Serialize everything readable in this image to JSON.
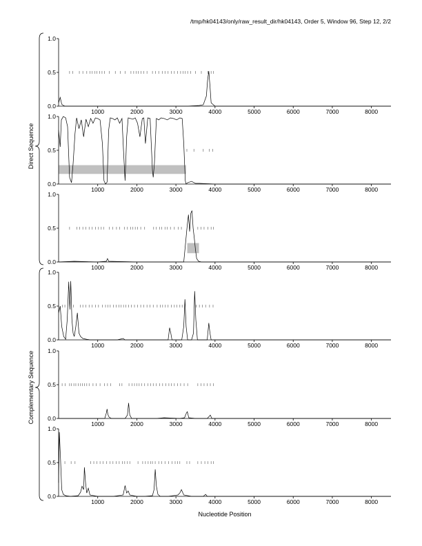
{
  "header": {
    "title": "/tmp/hk04143/only/raw_result_dir/hk04143, Order 5, Window 96, Step 12, 2/2"
  },
  "x_axis_label": "Nucleotide Position",
  "group_labels": [
    "Direct Sequence",
    "Complementary Sequence"
  ],
  "colors": {
    "line": "#000000",
    "highlight": "#c0c0c0",
    "axis": "#000000",
    "marker": "#555555"
  },
  "chart_data": [
    {
      "type": "line",
      "panel": 1,
      "group": "Direct Sequence",
      "xlim": [
        0,
        8500
      ],
      "ylim": [
        0,
        1
      ],
      "xticks": [
        1000,
        2000,
        3000,
        4000,
        5000,
        6000,
        7000,
        8000
      ],
      "yticks": [
        0.0,
        0.5,
        1.0
      ],
      "ytick_labels": [
        "0.0",
        "0.5",
        "1.0"
      ],
      "grid": false,
      "series": [
        {
          "x": [
            0,
            40,
            80,
            120,
            160,
            250,
            500,
            1000,
            1500,
            2000,
            2500,
            3000,
            3300,
            3600,
            3700,
            3780,
            3810,
            3840,
            3870,
            3900,
            4000,
            5000,
            8500
          ],
          "y": [
            0.05,
            0.13,
            0.03,
            0.01,
            0.0,
            0.0,
            0.0,
            0.0,
            0.0,
            0.0,
            0.0,
            0.0,
            0.0,
            0.01,
            0.02,
            0.15,
            0.38,
            0.52,
            0.3,
            0.05,
            0.0,
            0.0,
            0.0
          ]
        }
      ],
      "markers": {
        "y": 0.5,
        "x": [
          280,
          360,
          530,
          620,
          720,
          800,
          860,
          930,
          980,
          1050,
          1110,
          1170,
          1300,
          1450,
          1580,
          1700,
          1850,
          1920,
          1980,
          2040,
          2110,
          2180,
          2260,
          2400,
          2480,
          2560,
          2650,
          2720,
          2800,
          2880,
          2960,
          3040,
          3120,
          3180,
          3240,
          3300,
          3380,
          3500,
          3650,
          3820,
          3900,
          3960
        ]
      },
      "highlights": []
    },
    {
      "type": "line",
      "panel": 2,
      "group": "Direct Sequence",
      "xlim": [
        0,
        8500
      ],
      "ylim": [
        0,
        1
      ],
      "xticks": [
        1000,
        2000,
        3000,
        4000,
        5000,
        6000,
        7000,
        8000
      ],
      "yticks": [
        0.0,
        0.5,
        1.0
      ],
      "ytick_labels": [
        "0.0",
        "0.5",
        "1.0"
      ],
      "grid": false,
      "series": [
        {
          "x": [
            0,
            40,
            70,
            120,
            180,
            230,
            280,
            330,
            370,
            420,
            460,
            520,
            580,
            640,
            700,
            760,
            820,
            880,
            940,
            1000,
            1060,
            1120,
            1160,
            1200,
            1240,
            1280,
            1320,
            1380,
            1440,
            1500,
            1560,
            1620,
            1660,
            1700,
            1740,
            1780,
            1840,
            1900,
            1960,
            2020,
            2080,
            2140,
            2180,
            2220,
            2280,
            2340,
            2400,
            2420,
            2450,
            2500,
            2560,
            2620,
            2700,
            2780,
            2860,
            2940,
            3020,
            3100,
            3160,
            3200,
            3240,
            3260,
            3300,
            3400,
            3500,
            3600,
            4000,
            8500
          ],
          "y": [
            0.8,
            0.55,
            0.95,
            1.0,
            0.98,
            0.85,
            0.1,
            0.02,
            0.3,
            0.75,
            0.98,
            0.82,
            0.95,
            0.7,
            0.96,
            0.85,
            0.97,
            0.9,
            0.98,
            0.97,
            0.95,
            0.6,
            0.05,
            0.0,
            0.03,
            0.8,
            0.98,
            0.97,
            0.95,
            0.98,
            0.9,
            0.97,
            0.5,
            0.05,
            0.7,
            0.98,
            0.97,
            0.96,
            0.98,
            0.9,
            0.7,
            0.97,
            0.98,
            0.6,
            0.98,
            0.97,
            0.2,
            0.1,
            0.3,
            0.97,
            0.95,
            0.98,
            0.97,
            0.95,
            0.98,
            0.97,
            0.95,
            0.98,
            0.97,
            0.6,
            0.05,
            0.0,
            0.02,
            0.04,
            0.01,
            0.01,
            0.0,
            0.0
          ]
        }
      ],
      "markers": {
        "y": 0.5,
        "x": [
          3280,
          3460,
          3700,
          3850,
          3940
        ]
      },
      "highlights": [
        {
          "x0": 0,
          "x1": 3260,
          "y0": 0.15,
          "y1": 0.28
        }
      ]
    },
    {
      "type": "line",
      "panel": 3,
      "group": "Direct Sequence",
      "xlim": [
        0,
        8500
      ],
      "ylim": [
        0,
        1
      ],
      "xticks": [
        1000,
        2000,
        3000,
        4000,
        5000,
        6000,
        7000,
        8000
      ],
      "yticks": [
        0.0,
        0.5,
        1.0
      ],
      "ytick_labels": [
        "0.0",
        "0.5",
        "1.0"
      ],
      "grid": false,
      "series": [
        {
          "x": [
            0,
            400,
            1000,
            1220,
            1250,
            1280,
            2000,
            3200,
            3250,
            3290,
            3320,
            3350,
            3380,
            3410,
            3440,
            3470,
            3500,
            3530,
            3580,
            3650,
            4000,
            8500
          ],
          "y": [
            0.0,
            0.01,
            0.0,
            0.01,
            0.05,
            0.01,
            0.0,
            0.0,
            0.3,
            0.55,
            0.7,
            0.45,
            0.72,
            0.76,
            0.5,
            0.35,
            0.18,
            0.05,
            0.01,
            0.0,
            0.0,
            0.0
          ]
        }
      ],
      "markers": {
        "y": 0.5,
        "x": [
          280,
          470,
          540,
          620,
          700,
          780,
          860,
          940,
          1020,
          1090,
          1150,
          1300,
          1380,
          1480,
          1560,
          1680,
          1760,
          1840,
          1900,
          1960,
          2020,
          2100,
          2200,
          2430,
          2500,
          2580,
          2640,
          2720,
          2780,
          2860,
          2960,
          3060,
          3140,
          3560,
          3640,
          3720,
          3820,
          3900,
          3960
        ]
      },
      "highlights": [
        {
          "x0": 3290,
          "x1": 3590,
          "y0": 0.13,
          "y1": 0.28
        }
      ]
    },
    {
      "type": "line",
      "panel": 4,
      "group": "Complementary Sequence",
      "xlim": [
        0,
        8500
      ],
      "ylim": [
        0,
        1
      ],
      "xticks": [
        1000,
        2000,
        3000,
        4000,
        5000,
        6000,
        7000,
        8000
      ],
      "yticks": [
        0.0,
        0.5,
        1.0
      ],
      "ytick_labels": [
        "0.0",
        "0.5",
        "1.0"
      ],
      "grid": false,
      "series": [
        {
          "x": [
            0,
            40,
            80,
            130,
            180,
            220,
            260,
            290,
            310,
            340,
            370,
            400,
            440,
            480,
            520,
            560,
            620,
            700,
            800,
            1000,
            1500,
            1650,
            1700,
            1800,
            2000,
            2500,
            2800,
            2840,
            2870,
            2900,
            2940,
            3000,
            3150,
            3200,
            3230,
            3260,
            3300,
            3400,
            3450,
            3480,
            3510,
            3550,
            3600,
            3800,
            3840,
            3870,
            3900,
            4000,
            8500
          ],
          "y": [
            0.4,
            0.5,
            0.2,
            0.05,
            0.01,
            0.3,
            0.86,
            0.45,
            0.87,
            0.3,
            0.1,
            0.05,
            0.2,
            0.4,
            0.1,
            0.05,
            0.02,
            0.01,
            0.0,
            0.0,
            0.0,
            0.02,
            0.0,
            0.0,
            0.0,
            0.0,
            0.0,
            0.18,
            0.1,
            0.0,
            0.0,
            0.0,
            0.0,
            0.2,
            0.6,
            0.2,
            0.0,
            0.0,
            0.1,
            0.72,
            0.3,
            0.0,
            0.0,
            0.0,
            0.25,
            0.1,
            0.0,
            0.0,
            0.0
          ]
        }
      ],
      "markers": {
        "y": 0.5,
        "x": [
          100,
          160,
          380,
          560,
          620,
          700,
          780,
          860,
          940,
          1020,
          1120,
          1200,
          1260,
          1320,
          1400,
          1470,
          1540,
          1600,
          1660,
          1720,
          1790,
          1860,
          1940,
          2020,
          2100,
          2180,
          2260,
          2340,
          2420,
          2520,
          2600,
          2660,
          2730,
          2800,
          2880,
          2960,
          3020,
          3100,
          3160,
          3520,
          3600,
          3680,
          3760,
          3860,
          3950
        ]
      },
      "highlights": []
    },
    {
      "type": "line",
      "panel": 5,
      "group": "Complementary Sequence",
      "xlim": [
        0,
        8500
      ],
      "ylim": [
        0,
        1
      ],
      "xticks": [
        1000,
        2000,
        3000,
        4000,
        5000,
        6000,
        7000,
        8000
      ],
      "yticks": [
        0.0,
        0.5,
        1.0
      ],
      "ytick_labels": [
        "0.0",
        "0.5",
        "1.0"
      ],
      "grid": false,
      "series": [
        {
          "x": [
            0,
            500,
            1000,
            1180,
            1220,
            1240,
            1260,
            1290,
            1350,
            1500,
            1700,
            1760,
            1790,
            1820,
            1870,
            2000,
            2500,
            2700,
            3100,
            3220,
            3260,
            3290,
            3330,
            3500,
            3800,
            3850,
            3880,
            3920,
            4000,
            8500
          ],
          "y": [
            0.0,
            0.0,
            0.0,
            0.0,
            0.08,
            0.14,
            0.06,
            0.02,
            0.0,
            0.0,
            0.0,
            0.05,
            0.23,
            0.05,
            0.0,
            0.0,
            0.0,
            0.01,
            0.0,
            0.01,
            0.07,
            0.1,
            0.01,
            0.0,
            0.0,
            0.03,
            0.05,
            0.0,
            0.0,
            0.0
          ]
        }
      ],
      "markers": {
        "y": 0.5,
        "x": [
          90,
          170,
          280,
          330,
          390,
          440,
          500,
          560,
          610,
          660,
          720,
          780,
          880,
          960,
          1060,
          1170,
          1250,
          1330,
          1560,
          1620,
          1800,
          1880,
          1940,
          2000,
          2060,
          2120,
          2200,
          2280,
          2350,
          2420,
          2500,
          2580,
          2660,
          2740,
          2820,
          2880,
          2960,
          3040,
          3120,
          3210,
          3300,
          3560,
          3640,
          3720,
          3800,
          3880,
          3960
        ]
      },
      "highlights": []
    },
    {
      "type": "line",
      "panel": 6,
      "group": "Complementary Sequence",
      "xlim": [
        0,
        8500
      ],
      "ylim": [
        0,
        1
      ],
      "xticks": [
        1000,
        2000,
        3000,
        4000,
        5000,
        6000,
        7000,
        8000
      ],
      "yticks": [
        0.0,
        0.5,
        1.0
      ],
      "ytick_labels": [
        "0.0",
        "0.5",
        "1.0"
      ],
      "grid": false,
      "series": [
        {
          "x": [
            0,
            20,
            50,
            80,
            120,
            180,
            300,
            500,
            560,
            600,
            640,
            660,
            690,
            720,
            760,
            800,
            1000,
            1400,
            1650,
            1700,
            1740,
            1780,
            1820,
            2000,
            2200,
            2400,
            2440,
            2470,
            2500,
            2540,
            2600,
            2800,
            3050,
            3100,
            3140,
            3200,
            3400,
            3700,
            3760,
            3800,
            4000,
            8500
          ],
          "y": [
            0.2,
            0.95,
            0.55,
            0.1,
            0.03,
            0.01,
            0.0,
            0.01,
            0.06,
            0.15,
            0.1,
            0.43,
            0.2,
            0.05,
            0.12,
            0.02,
            0.0,
            0.0,
            0.02,
            0.16,
            0.05,
            0.08,
            0.02,
            0.0,
            0.0,
            0.01,
            0.1,
            0.4,
            0.15,
            0.03,
            0.0,
            0.0,
            0.02,
            0.05,
            0.1,
            0.02,
            0.0,
            0.0,
            0.03,
            0.0,
            0.0,
            0.0
          ]
        }
      ],
      "markers": {
        "y": 0.5,
        "x": [
          160,
          320,
          420,
          820,
          900,
          980,
          1060,
          1140,
          1230,
          1310,
          1390,
          1470,
          1550,
          1630,
          1690,
          1760,
          1820,
          2030,
          2150,
          2220,
          2290,
          2350,
          2400,
          2470,
          2560,
          2640,
          2720,
          2810,
          2900,
          2980,
          3040,
          3100,
          3280,
          3350,
          3560,
          3650,
          3740,
          3820,
          3900,
          3960
        ]
      },
      "highlights": []
    }
  ]
}
